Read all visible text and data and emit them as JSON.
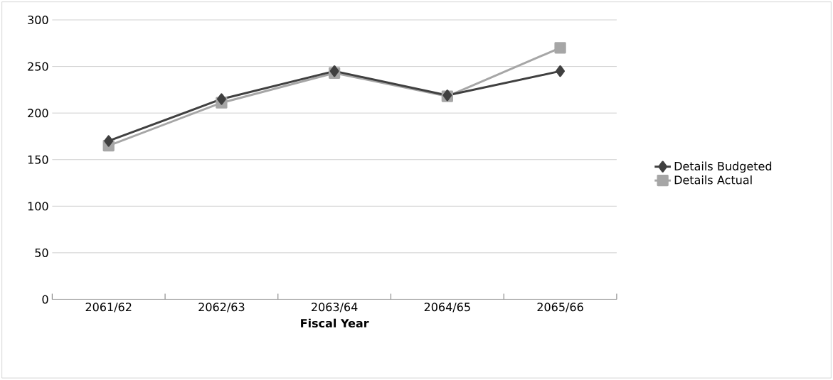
{
  "chart_data": {
    "type": "line",
    "xlabel": "Fiscal Year",
    "categories": [
      "2061/62",
      "2062/63",
      "2063/64",
      "2064/65",
      "2065/66"
    ],
    "series": [
      {
        "name": "Details Budgeted",
        "color": "#404040",
        "marker": "diamond",
        "values": [
          170,
          215,
          245,
          219,
          245
        ]
      },
      {
        "name": "Details Actual",
        "color": "#a6a6a6",
        "marker": "square",
        "values": [
          165,
          211,
          243,
          218,
          270
        ]
      }
    ],
    "ylim": [
      0,
      300
    ],
    "yticks": [
      0,
      50,
      100,
      150,
      200,
      250,
      300
    ],
    "grid": "y",
    "legend": "right"
  }
}
